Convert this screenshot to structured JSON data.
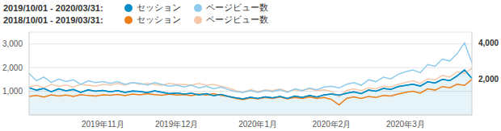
{
  "chart_data": {
    "type": "line",
    "grid": true,
    "categories": [
      null,
      null,
      null,
      null,
      null,
      null,
      null,
      null,
      null,
      null,
      "2019年11月",
      null,
      null,
      null,
      null,
      null,
      null,
      null,
      null,
      null,
      "2019年12月",
      null,
      null,
      null,
      null,
      null,
      null,
      null,
      null,
      null,
      null,
      "2020年1月",
      null,
      null,
      null,
      null,
      null,
      null,
      null,
      null,
      null,
      "2020年2月",
      null,
      null,
      null,
      null,
      null,
      null,
      null,
      null,
      null,
      "2020年3月",
      null,
      null,
      null,
      null,
      null,
      null,
      null,
      null,
      null
    ],
    "ylim": [
      0,
      3500
    ],
    "yticks": [
      {
        "value": 1000,
        "label": "1,000"
      },
      {
        "value": 2000,
        "label": "2,000"
      },
      {
        "value": 3000,
        "label": "3,000"
      }
    ],
    "y2lim": [
      0,
      4600
    ],
    "y2ticks": [
      {
        "value": 2000,
        "label": "2,000"
      },
      {
        "value": 4000,
        "label": "4,000"
      }
    ],
    "series": [
      {
        "name": "セッション",
        "period": "2019/10/01 - 2020/03/31:",
        "color": "#058dc7",
        "type": "area",
        "values": [
          1150,
          1050,
          1120,
          980,
          1100,
          1020,
          1080,
          950,
          1060,
          1000,
          1040,
          980,
          1030,
          950,
          1010,
          990,
          940,
          1020,
          960,
          900,
          930,
          880,
          920,
          850,
          900,
          820,
          870,
          780,
          720,
          680,
          750,
          700,
          760,
          720,
          780,
          700,
          800,
          740,
          820,
          760,
          850,
          880,
          830,
          920,
          980,
          900,
          1050,
          1000,
          1120,
          1080,
          1200,
          1250,
          1300,
          1220,
          1400,
          1350,
          1500,
          1450,
          1650,
          1900,
          1550
        ]
      },
      {
        "name": "ページビュー数",
        "period": "2019/10/01 - 2020/03/31:",
        "color": "#8ecbec",
        "axis": "y2",
        "type": "line",
        "values": [
          2300,
          1900,
          2100,
          1800,
          2000,
          1850,
          1950,
          1700,
          1900,
          1800,
          1850,
          1750,
          1850,
          1700,
          1800,
          1750,
          1650,
          1800,
          1700,
          1600,
          1650,
          1550,
          1650,
          1500,
          1600,
          1450,
          1550,
          1400,
          1300,
          1250,
          1350,
          1250,
          1350,
          1300,
          1400,
          1250,
          1450,
          1350,
          1500,
          1400,
          1550,
          1600,
          1500,
          1700,
          1800,
          1650,
          1950,
          1850,
          2100,
          2000,
          2250,
          2400,
          2500,
          2350,
          2800,
          2700,
          3100,
          3000,
          3400,
          4000,
          2900
        ]
      },
      {
        "name": "セッション",
        "period": "2018/10/01 - 2019/03/31:",
        "color": "#ed7e17",
        "type": "line",
        "values": [
          780,
          820,
          760,
          850,
          800,
          840,
          780,
          860,
          820,
          800,
          850,
          830,
          870,
          820,
          880,
          850,
          900,
          860,
          830,
          880,
          840,
          860,
          820,
          880,
          840,
          900,
          820,
          780,
          700,
          650,
          720,
          680,
          740,
          700,
          760,
          680,
          740,
          700,
          760,
          700,
          740,
          650,
          420,
          700,
          760,
          700,
          780,
          740,
          820,
          800,
          880,
          950,
          1000,
          920,
          1100,
          1050,
          1200,
          1150,
          1300,
          1250,
          1500
        ]
      },
      {
        "name": "ページビュー数",
        "period": "2018/10/01 - 2019/03/31:",
        "color": "#f6c7a8",
        "axis": "y2",
        "type": "line",
        "values": [
          1550,
          1650,
          1500,
          1700,
          1600,
          1650,
          1550,
          1700,
          1650,
          1600,
          1700,
          1650,
          1750,
          1650,
          1800,
          1700,
          1750,
          1700,
          1650,
          1750,
          1700,
          1700,
          1650,
          1750,
          1650,
          1700,
          1600,
          1500,
          1350,
          1250,
          1400,
          1300,
          1400,
          1350,
          1450,
          1300,
          1400,
          1350,
          1450,
          1350,
          1400,
          1300,
          1000,
          1350,
          1450,
          1350,
          1500,
          1450,
          1600,
          1550,
          1700,
          1800,
          1900,
          1750,
          2000,
          1950,
          2200,
          2100,
          2400,
          2300,
          2600
        ]
      }
    ]
  }
}
